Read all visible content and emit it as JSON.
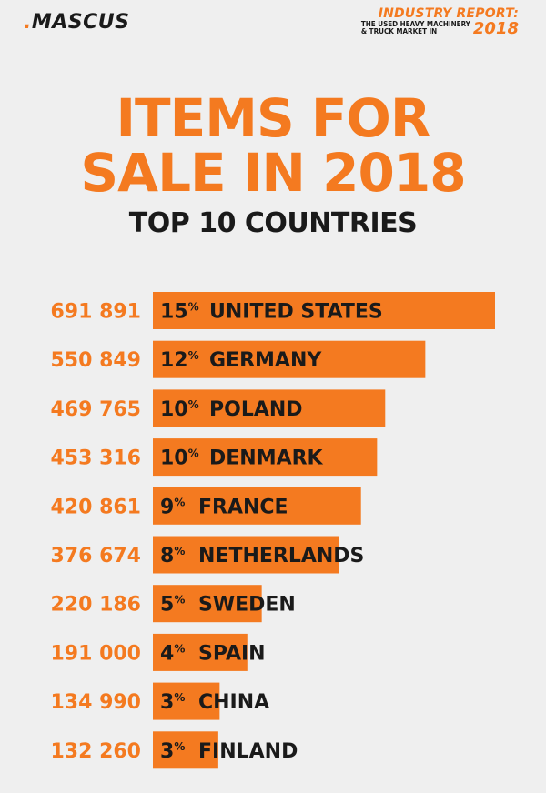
{
  "header": {
    "logo": ".MASCUS",
    "report_line1": "INDUSTRY REPORT:",
    "report_line2": "THE USED HEAVY MACHINERY",
    "report_line3": "& TRUCK MARKET IN",
    "report_year": "2018"
  },
  "colors": {
    "accent": "#f47a20",
    "text": "#1a1a1a",
    "background": "#efefef"
  },
  "chart_data": {
    "type": "bar",
    "title": "ITEMS FOR SALE IN 2018",
    "subtitle": "TOP 10 COUNTRIES",
    "orientation": "horizontal",
    "categories": [
      "UNITED STATES",
      "GERMANY",
      "POLAND",
      "DENMARK",
      "FRANCE",
      "NETHERLANDS",
      "SWEDEN",
      "SPAIN",
      "CHINA",
      "FINLAND"
    ],
    "value_labels": [
      "691 891",
      "550 849",
      "469 765",
      "453 316",
      "420 861",
      "376 674",
      "220 186",
      "191 000",
      "134 990",
      "132 260"
    ],
    "values": [
      691891,
      550849,
      469765,
      453316,
      420861,
      376674,
      220186,
      191000,
      134990,
      132260
    ],
    "percents": [
      "15",
      "12",
      "10",
      "10",
      "9",
      "8",
      "5",
      "4",
      "3",
      "3"
    ],
    "percent_symbol": "%"
  }
}
